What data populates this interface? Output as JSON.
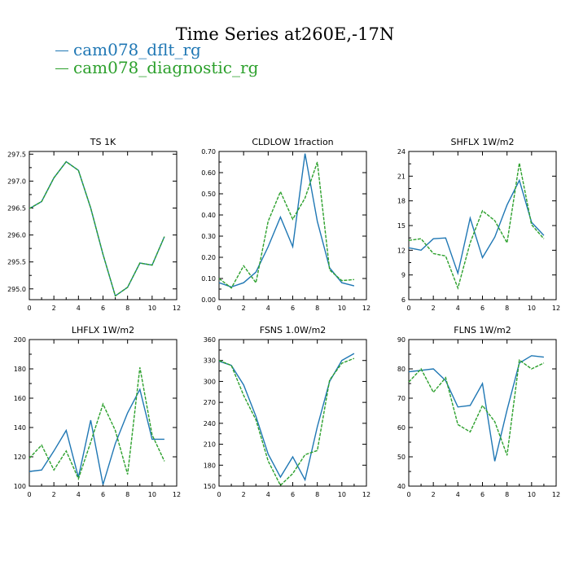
{
  "title": "Time Series at260E,-17N",
  "legend": [
    {
      "label": "cam078_dflt_rg",
      "color": "#1f77b4"
    },
    {
      "label": "cam078_diagnostic_rg",
      "color": "#2ca02c"
    }
  ],
  "chart_data": [
    {
      "type": "line",
      "title": "TS   1K",
      "x": [
        0,
        1,
        2,
        3,
        4,
        5,
        6,
        7,
        8,
        9,
        10,
        11
      ],
      "xlim": [
        0,
        12
      ],
      "xticks": [
        0,
        2,
        4,
        6,
        8,
        10,
        12
      ],
      "ylim": [
        294.8,
        297.55
      ],
      "yticks": [
        "295.0",
        "295.5",
        "296.0",
        "296.5",
        "297.0",
        "297.5"
      ],
      "series": [
        {
          "name": "cam078_dflt_rg",
          "color": "#1f77b4",
          "dashed": false,
          "values": [
            296.49,
            296.62,
            297.06,
            297.36,
            297.2,
            296.5,
            295.64,
            294.87,
            295.03,
            295.48,
            295.44,
            295.97
          ]
        },
        {
          "name": "cam078_diagnostic_rg",
          "color": "#2ca02c",
          "dashed": true,
          "values": [
            296.49,
            296.62,
            297.06,
            297.36,
            297.2,
            296.5,
            295.64,
            294.87,
            295.03,
            295.48,
            295.44,
            295.97
          ]
        }
      ]
    },
    {
      "type": "line",
      "title": "CLDLOW   1fraction",
      "x": [
        0,
        1,
        2,
        3,
        4,
        5,
        6,
        7,
        8,
        9,
        10,
        11
      ],
      "xlim": [
        0,
        12
      ],
      "xticks": [
        0,
        2,
        4,
        6,
        8,
        10,
        12
      ],
      "ylim": [
        0,
        0.7
      ],
      "yticks": [
        "0.00",
        "0.10",
        "0.20",
        "0.30",
        "0.40",
        "0.50",
        "0.60",
        "0.70"
      ],
      "series": [
        {
          "name": "cam078_dflt_rg",
          "color": "#1f77b4",
          "dashed": false,
          "values": [
            0.08,
            0.06,
            0.08,
            0.13,
            0.25,
            0.39,
            0.25,
            0.69,
            0.37,
            0.15,
            0.08,
            0.065
          ]
        },
        {
          "name": "cam078_diagnostic_rg",
          "color": "#2ca02c",
          "dashed": true,
          "values": [
            0.1,
            0.055,
            0.16,
            0.08,
            0.37,
            0.51,
            0.38,
            0.48,
            0.65,
            0.14,
            0.09,
            0.095
          ]
        }
      ]
    },
    {
      "type": "line",
      "title": "SHFLX   1W/m2",
      "x": [
        0,
        1,
        2,
        3,
        4,
        5,
        6,
        7,
        8,
        9,
        10,
        11
      ],
      "xlim": [
        0,
        12
      ],
      "xticks": [
        0,
        2,
        4,
        6,
        8,
        10,
        12
      ],
      "ylim": [
        6,
        24
      ],
      "yticks": [
        "6",
        "9",
        "12",
        "15",
        "18",
        "21",
        "24"
      ],
      "series": [
        {
          "name": "cam078_dflt_rg",
          "color": "#1f77b4",
          "dashed": false,
          "values": [
            12.3,
            12.0,
            13.4,
            13.5,
            9.2,
            15.9,
            11.1,
            13.6,
            17.5,
            20.5,
            15.4,
            13.8
          ]
        },
        {
          "name": "cam078_diagnostic_rg",
          "color": "#2ca02c",
          "dashed": true,
          "values": [
            13.2,
            13.4,
            11.6,
            11.3,
            7.4,
            12.9,
            16.8,
            15.6,
            12.9,
            22.6,
            15.1,
            13.4
          ]
        }
      ]
    },
    {
      "type": "line",
      "title": "LHFLX   1W/m2",
      "x": [
        0,
        1,
        2,
        3,
        4,
        5,
        6,
        7,
        8,
        9,
        10,
        11
      ],
      "xlim": [
        0,
        12
      ],
      "xticks": [
        0,
        2,
        4,
        6,
        8,
        10,
        12
      ],
      "ylim": [
        100,
        200
      ],
      "yticks": [
        "100",
        "120",
        "140",
        "160",
        "180",
        "200"
      ],
      "series": [
        {
          "name": "cam078_dflt_rg",
          "color": "#1f77b4",
          "dashed": false,
          "values": [
            110,
            111,
            124,
            138,
            106,
            145,
            101,
            129,
            150,
            166,
            132,
            132
          ]
        },
        {
          "name": "cam078_diagnostic_rg",
          "color": "#2ca02c",
          "dashed": true,
          "values": [
            119,
            128,
            111,
            124,
            105,
            130,
            156,
            138,
            108,
            181,
            135,
            117
          ]
        }
      ]
    },
    {
      "type": "line",
      "title": "FSNS   1.0W/m2",
      "x": [
        0,
        1,
        2,
        3,
        4,
        5,
        6,
        7,
        8,
        9,
        10,
        11
      ],
      "xlim": [
        0,
        12
      ],
      "xticks": [
        0,
        2,
        4,
        6,
        8,
        10,
        12
      ],
      "ylim": [
        150,
        360
      ],
      "yticks": [
        "150",
        "180",
        "210",
        "240",
        "270",
        "300",
        "330",
        "360"
      ],
      "series": [
        {
          "name": "cam078_dflt_rg",
          "color": "#1f77b4",
          "dashed": false,
          "values": [
            329,
            323,
            295,
            250,
            196,
            163,
            192,
            159,
            235,
            300,
            330,
            340
          ]
        },
        {
          "name": "cam078_diagnostic_rg",
          "color": "#2ca02c",
          "dashed": true,
          "values": [
            330,
            323,
            280,
            245,
            186,
            151,
            168,
            195,
            201,
            302,
            326,
            333
          ]
        }
      ]
    },
    {
      "type": "line",
      "title": "FLNS   1W/m2",
      "x": [
        0,
        1,
        2,
        3,
        4,
        5,
        6,
        7,
        8,
        9,
        10,
        11
      ],
      "xlim": [
        0,
        12
      ],
      "xticks": [
        0,
        2,
        4,
        6,
        8,
        10,
        12
      ],
      "ylim": [
        40,
        90
      ],
      "yticks": [
        "40",
        "50",
        "60",
        "70",
        "80",
        "90"
      ],
      "series": [
        {
          "name": "cam078_dflt_rg",
          "color": "#1f77b4",
          "dashed": false,
          "values": [
            79,
            79.5,
            80,
            76,
            67,
            67.5,
            75,
            48.5,
            66,
            82,
            84.5,
            84
          ]
        },
        {
          "name": "cam078_diagnostic_rg",
          "color": "#2ca02c",
          "dashed": true,
          "values": [
            75.5,
            80,
            72,
            77,
            61,
            58.5,
            67.5,
            62,
            50.5,
            83,
            80,
            82
          ]
        }
      ]
    }
  ]
}
